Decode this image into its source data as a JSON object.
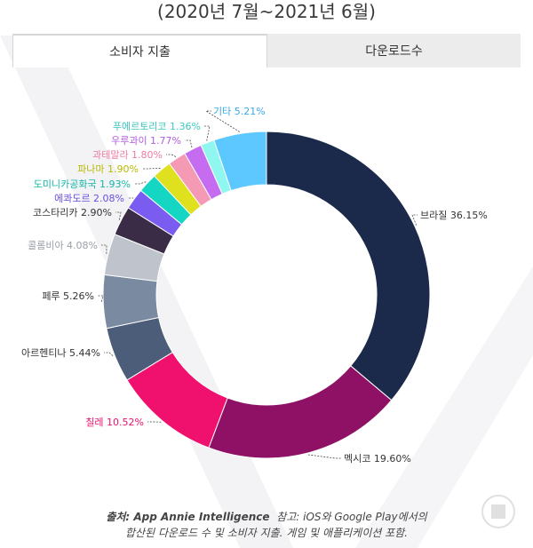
{
  "subtitle": "(2020년 7월~2021년 6월)",
  "tabs": [
    {
      "label": "소비자 지출",
      "active": true
    },
    {
      "label": "다운로드수",
      "active": false
    }
  ],
  "footnote": {
    "source_label": "출처: App Annie Intelligence",
    "line1_rest": "참고: iOS와 Google Play에서의",
    "line2": "합산된 다운로드 수 및 소비자 지출. 게임 및 애플리케이션 포함."
  },
  "chart_data": {
    "type": "pie",
    "donut": true,
    "title": "",
    "series": [
      {
        "label": "브라질 36.15%",
        "name": "브라질",
        "value": 36.15,
        "color": "#1b2a4a",
        "label_color": "#333333"
      },
      {
        "label": "멕시코 19.60%",
        "name": "멕시코",
        "value": 19.6,
        "color": "#8e1166",
        "label_color": "#333333"
      },
      {
        "label": "칠레 10.52%",
        "name": "칠레",
        "value": 10.52,
        "color": "#f0106e",
        "label_color": "#e8106c"
      },
      {
        "label": "아르헨티나 5.44%",
        "name": "아르헨티나",
        "value": 5.44,
        "color": "#4b5d78",
        "label_color": "#333333"
      },
      {
        "label": "페루 5.26%",
        "name": "페루",
        "value": 5.26,
        "color": "#7a8aa1",
        "label_color": "#333333"
      },
      {
        "label": "콜롬비아 4.08%",
        "name": "콜롬비아",
        "value": 4.08,
        "color": "#bfc4cc",
        "label_color": "#9aa0a8"
      },
      {
        "label": "코스타리카 2.90%",
        "name": "코스타리카",
        "value": 2.9,
        "color": "#3a2c47",
        "label_color": "#333333"
      },
      {
        "label": "에콰도르 2.08%",
        "name": "에콰도르",
        "value": 2.08,
        "color": "#7b5cf0",
        "label_color": "#6b4fe0"
      },
      {
        "label": "도미니카공화국 1.93%",
        "name": "도미니카공화국",
        "value": 1.93,
        "color": "#14d6c2",
        "label_color": "#10b8a8"
      },
      {
        "label": "파나마 1.90%",
        "name": "파나마",
        "value": 1.9,
        "color": "#dfe01e",
        "label_color": "#b8b800"
      },
      {
        "label": "과테말라 1.80%",
        "name": "과테말라",
        "value": 1.8,
        "color": "#f59ab4",
        "label_color": "#f07aa0"
      },
      {
        "label": "우루과이 1.77%",
        "name": "우루과이",
        "value": 1.77,
        "color": "#c56cf0",
        "label_color": "#b25ce0"
      },
      {
        "label": "푸에르토리코 1.36%",
        "name": "푸에르토리코",
        "value": 1.36,
        "color": "#8ff7f0",
        "label_color": "#3cc8c0"
      },
      {
        "label": "기타 5.21%",
        "name": "기타",
        "value": 5.21,
        "color": "#5cc8ff",
        "label_color": "#3aa8e8"
      }
    ]
  }
}
